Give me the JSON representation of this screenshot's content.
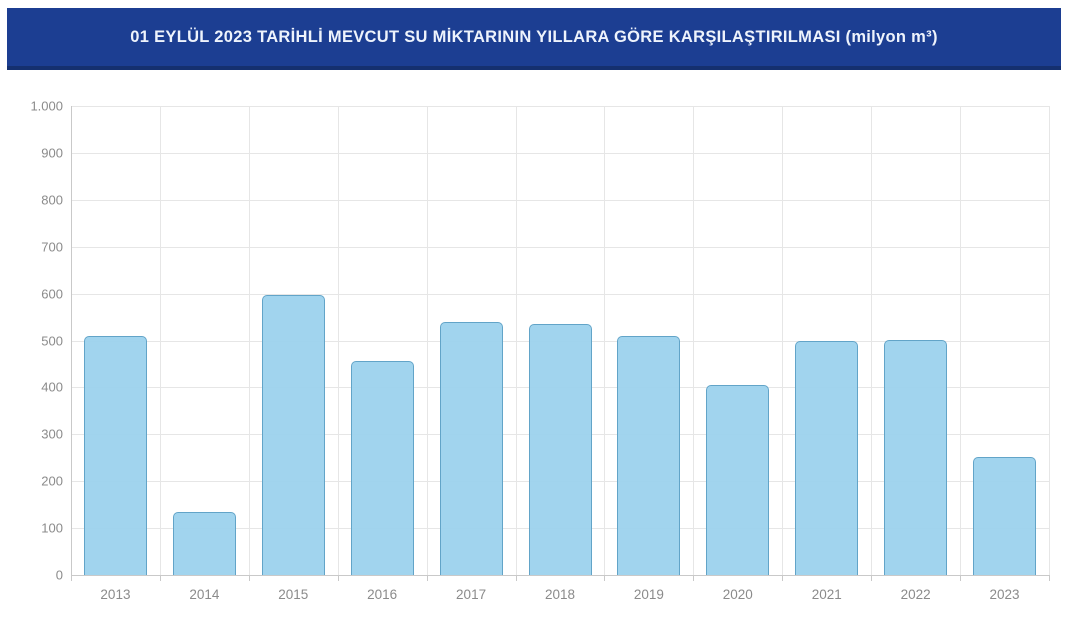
{
  "header": {
    "title": "01 EYLÜL 2023 TARİHLİ MEVCUT SU MİKTARININ YILLARA GÖRE KARŞILAŞTIRILMASI (milyon m³)"
  },
  "chart_data": {
    "type": "bar",
    "title": "01 EYLÜL 2023 TARİHLİ MEVCUT SU MİKTARININ YILLARA GÖRE KARŞILAŞTIRILMASI",
    "unit": "milyon m³",
    "categories": [
      "2013",
      "2014",
      "2015",
      "2016",
      "2017",
      "2018",
      "2019",
      "2020",
      "2021",
      "2022",
      "2023"
    ],
    "values": [
      510,
      134,
      597,
      456,
      540,
      536,
      510,
      406,
      500,
      502,
      251
    ],
    "xlabel": "",
    "ylabel": "",
    "ylim": [
      0,
      1000
    ],
    "ytick_step": 100,
    "ytick_labels": [
      "0",
      "100",
      "200",
      "300",
      "400",
      "500",
      "600",
      "700",
      "800",
      "900",
      "1.000"
    ],
    "grid": "horizontal-and-vertical",
    "legend": "none",
    "colors": {
      "header_bg": "#1c3e92",
      "header_border": "#15306f",
      "title_text": "#eef3fc",
      "bar_fill": "#9bd1ed",
      "bar_border": "#62a4c8",
      "gridline": "#e6e6e6",
      "axis_line": "#c9c9c9",
      "tick_label": "#8b8b8b"
    }
  }
}
